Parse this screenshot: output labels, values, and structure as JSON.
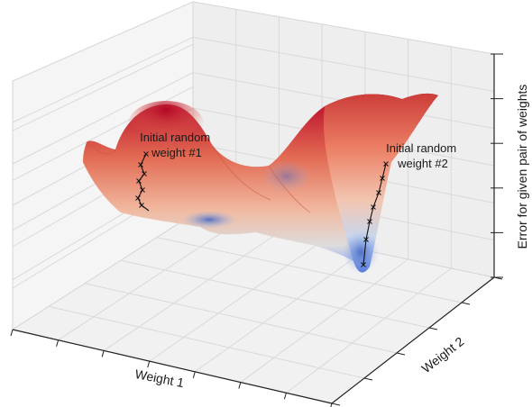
{
  "chart_data": {
    "type": "surface",
    "title": "",
    "xlabel": "Weight 1",
    "ylabel": "Weight 2",
    "zlabel": "Error for given pair of weights",
    "grid": true,
    "tick_labels_shown": false,
    "colormap": "coolwarm",
    "colormap_colors": {
      "low": "#3b5fc0",
      "mid": "#dddcdc",
      "high": "#b40426"
    },
    "annotations": [
      {
        "label_lines": [
          "Initial random",
          "weight #1"
        ]
      },
      {
        "label_lines": [
          "Initial random",
          "weight #2"
        ]
      }
    ],
    "descent_paths": [
      {
        "start": "Initial random weight #1",
        "marker": "x",
        "steps": 7
      },
      {
        "start": "Initial random weight #2",
        "marker": "x",
        "steps": 6
      }
    ]
  }
}
